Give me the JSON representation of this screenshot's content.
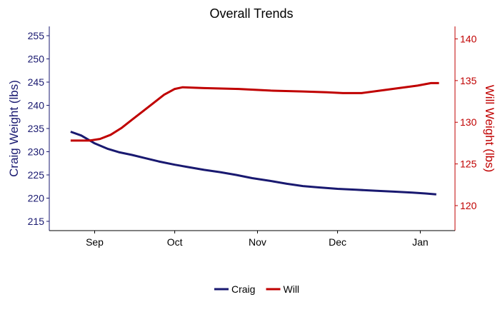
{
  "chart_data": {
    "type": "line",
    "title": "Overall Trends",
    "ylabel_left": "Craig Weight (lbs)",
    "ylabel_right": "Will Weight (lbs)",
    "ylim_left": [
      213,
      257
    ],
    "ylim_right": [
      117,
      141.5
    ],
    "yticks_left": [
      215,
      220,
      225,
      230,
      235,
      240,
      245,
      250,
      255
    ],
    "yticks_right": [
      120,
      125,
      130,
      135,
      140
    ],
    "xlim": [
      "2023-08-15",
      "2024-01-14"
    ],
    "xticks": [
      {
        "date": "2023-09-01",
        "label": "Sep"
      },
      {
        "date": "2023-10-01",
        "label": "Oct"
      },
      {
        "date": "2023-11-01",
        "label": "Nov"
      },
      {
        "date": "2023-12-01",
        "label": "Dec"
      },
      {
        "date": "2024-01-01",
        "label": "Jan"
      }
    ],
    "grid": false,
    "legend_position": "bottom",
    "series": [
      {
        "name": "Craig",
        "axis": "left",
        "color": "#191970",
        "points": [
          [
            "2023-08-23",
            234.3
          ],
          [
            "2023-08-27",
            233.5
          ],
          [
            "2023-09-01",
            231.8
          ],
          [
            "2023-09-06",
            230.6
          ],
          [
            "2023-09-10",
            229.9
          ],
          [
            "2023-09-15",
            229.3
          ],
          [
            "2023-09-20",
            228.6
          ],
          [
            "2023-09-25",
            227.9
          ],
          [
            "2023-10-01",
            227.2
          ],
          [
            "2023-10-06",
            226.7
          ],
          [
            "2023-10-12",
            226.1
          ],
          [
            "2023-10-18",
            225.6
          ],
          [
            "2023-10-24",
            225.0
          ],
          [
            "2023-10-30",
            224.3
          ],
          [
            "2023-11-06",
            223.7
          ],
          [
            "2023-11-12",
            223.1
          ],
          [
            "2023-11-18",
            222.6
          ],
          [
            "2023-11-24",
            222.3
          ],
          [
            "2023-12-01",
            222.0
          ],
          [
            "2023-12-08",
            221.8
          ],
          [
            "2023-12-15",
            221.6
          ],
          [
            "2023-12-22",
            221.4
          ],
          [
            "2023-12-29",
            221.2
          ],
          [
            "2024-01-03",
            221.0
          ],
          [
            "2024-01-07",
            220.8
          ]
        ]
      },
      {
        "name": "Will",
        "axis": "right",
        "color": "#c00000",
        "points": [
          [
            "2023-08-23",
            127.8
          ],
          [
            "2023-08-30",
            127.8
          ],
          [
            "2023-09-03",
            128.0
          ],
          [
            "2023-09-07",
            128.5
          ],
          [
            "2023-09-11",
            129.3
          ],
          [
            "2023-09-15",
            130.3
          ],
          [
            "2023-09-19",
            131.3
          ],
          [
            "2023-09-23",
            132.3
          ],
          [
            "2023-09-27",
            133.3
          ],
          [
            "2023-10-01",
            134.0
          ],
          [
            "2023-10-04",
            134.2
          ],
          [
            "2023-10-12",
            134.1
          ],
          [
            "2023-10-25",
            134.0
          ],
          [
            "2023-11-06",
            133.8
          ],
          [
            "2023-11-18",
            133.7
          ],
          [
            "2023-11-27",
            133.6
          ],
          [
            "2023-12-03",
            133.5
          ],
          [
            "2023-12-10",
            133.5
          ],
          [
            "2023-12-17",
            133.8
          ],
          [
            "2023-12-24",
            134.1
          ],
          [
            "2023-12-31",
            134.4
          ],
          [
            "2024-01-05",
            134.7
          ],
          [
            "2024-01-08",
            134.7
          ]
        ]
      }
    ]
  }
}
